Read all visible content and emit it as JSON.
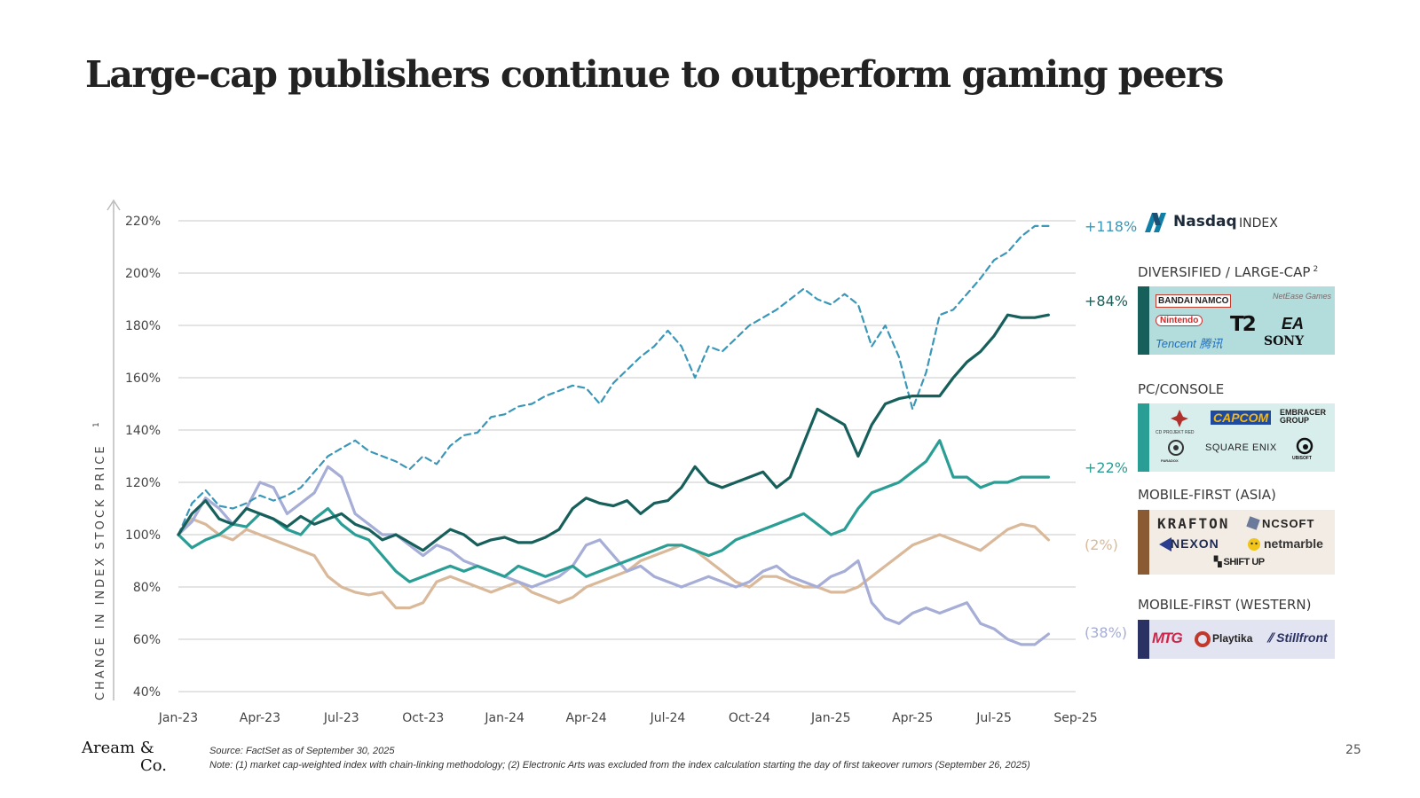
{
  "title": "Large-cap publishers continue to outperform gaming peers",
  "chart_data": {
    "type": "line",
    "ylabel": "CHANGE IN INDEX STOCK PRICE",
    "ylabel_note": "1",
    "ylim": [
      40,
      220
    ],
    "yticks": [
      40,
      60,
      80,
      100,
      120,
      140,
      160,
      180,
      200,
      220
    ],
    "ytick_labels": [
      "40%",
      "60%",
      "80%",
      "100%",
      "120%",
      "140%",
      "160%",
      "180%",
      "200%",
      "220%"
    ],
    "x_months": 33,
    "xtick_labels": [
      "Jan-23",
      "Apr-23",
      "Jul-23",
      "Oct-23",
      "Jan-24",
      "Apr-24",
      "Jul-24",
      "Oct-24",
      "Jan-25",
      "Apr-25",
      "Jul-25",
      "Sep-25"
    ],
    "xtick_months": [
      0,
      3,
      6,
      9,
      12,
      15,
      18,
      21,
      24,
      27,
      30,
      33
    ],
    "x_sample_step": 0.5,
    "series": [
      {
        "name": "Nasdaq Index",
        "color": "#3a97b7",
        "dashed": true,
        "end_label": "+118%",
        "values": [
          100,
          112,
          117,
          111,
          110,
          112,
          115,
          113,
          115,
          118,
          124,
          130,
          133,
          136,
          132,
          130,
          128,
          125,
          130,
          127,
          134,
          138,
          139,
          145,
          146,
          149,
          150,
          153,
          155,
          157,
          156,
          150,
          158,
          163,
          168,
          172,
          178,
          172,
          160,
          172,
          170,
          175,
          180,
          183,
          186,
          190,
          194,
          190,
          188,
          192,
          188,
          172,
          180,
          168,
          148,
          162,
          184,
          186,
          192,
          198,
          205,
          208,
          214,
          218,
          218
        ]
      },
      {
        "name": "Diversified / Large-Cap",
        "color": "#165f5b",
        "dashed": false,
        "end_label": "+84%",
        "values": [
          100,
          108,
          113,
          106,
          104,
          110,
          108,
          106,
          103,
          107,
          104,
          106,
          108,
          104,
          102,
          98,
          100,
          97,
          94,
          98,
          102,
          100,
          96,
          98,
          99,
          97,
          97,
          99,
          102,
          110,
          114,
          112,
          111,
          113,
          108,
          112,
          113,
          118,
          126,
          120,
          118,
          120,
          122,
          124,
          118,
          122,
          135,
          148,
          145,
          142,
          130,
          142,
          150,
          152,
          153,
          153,
          153,
          160,
          166,
          170,
          176,
          184,
          183,
          183,
          184
        ]
      },
      {
        "name": "PC/Console",
        "color": "#2a9e95",
        "dashed": false,
        "end_label": "+22%",
        "values": [
          100,
          95,
          98,
          100,
          104,
          103,
          108,
          106,
          102,
          100,
          106,
          110,
          104,
          100,
          98,
          92,
          86,
          82,
          84,
          86,
          88,
          86,
          88,
          86,
          84,
          88,
          86,
          84,
          86,
          88,
          84,
          86,
          88,
          90,
          92,
          94,
          96,
          96,
          94,
          92,
          94,
          98,
          100,
          102,
          104,
          106,
          108,
          104,
          100,
          102,
          110,
          116,
          118,
          120,
          124,
          128,
          136,
          122,
          122,
          118,
          120,
          120,
          122,
          122,
          122
        ]
      },
      {
        "name": "Mobile-First (Asia)",
        "color": "#d9b99a",
        "dashed": false,
        "end_label": "(2%)",
        "values": [
          100,
          106,
          104,
          100,
          98,
          102,
          100,
          98,
          96,
          94,
          92,
          84,
          80,
          78,
          77,
          78,
          72,
          72,
          74,
          82,
          84,
          82,
          80,
          78,
          80,
          82,
          78,
          76,
          74,
          76,
          80,
          82,
          84,
          86,
          90,
          92,
          94,
          96,
          94,
          90,
          86,
          82,
          80,
          84,
          84,
          82,
          80,
          80,
          78,
          78,
          80,
          84,
          88,
          92,
          96,
          98,
          100,
          98,
          96,
          94,
          98,
          102,
          104,
          103,
          98
        ]
      },
      {
        "name": "Mobile-First (Western)",
        "color": "#a6add6",
        "dashed": false,
        "end_label": "(38%)",
        "values": [
          100,
          105,
          114,
          110,
          104,
          110,
          120,
          118,
          108,
          112,
          116,
          126,
          122,
          108,
          104,
          100,
          100,
          96,
          92,
          96,
          94,
          90,
          88,
          86,
          84,
          82,
          80,
          82,
          84,
          88,
          96,
          98,
          92,
          86,
          88,
          84,
          82,
          80,
          82,
          84,
          82,
          80,
          82,
          86,
          88,
          84,
          82,
          80,
          84,
          86,
          90,
          74,
          68,
          66,
          70,
          72,
          70,
          72,
          74,
          66,
          64,
          60,
          58,
          58,
          62
        ]
      }
    ]
  },
  "legend": {
    "nasdaq_label": "+118%",
    "nasdaq_word": "Nasdaq",
    "nasdaq_index": "INDEX",
    "categories": [
      {
        "label": "DIVERSIFIED / LARGE-CAP",
        "note": "2",
        "bar_color": "#165f5b",
        "bg": "#b3dcdc",
        "logos": [
          "BANDAI NAMCO",
          "NetEase Games",
          "Nintendo",
          "T2",
          "EA",
          "Tencent 腾讯",
          "SONY"
        ]
      },
      {
        "label": "PC/CONSOLE",
        "note": "",
        "bar_color": "#2a9e95",
        "bg": "#d8eeec",
        "logos": [
          "CD PROJEKT RED",
          "CAPCOM",
          "EMBRACER GROUP",
          "SQUARE ENIX",
          "UBISOFT",
          "PARADOX"
        ]
      },
      {
        "label": "MOBILE-FIRST (ASIA)",
        "note": "",
        "bar_color": "#8a5a32",
        "bg": "#f3ece4",
        "logos": [
          "KRAFTON",
          "NCSOFT",
          "NEXON",
          "netmarble",
          "SHIFT UP"
        ]
      },
      {
        "label": "MOBILE-FIRST (WESTERN)",
        "note": "",
        "bar_color": "#2a3163",
        "bg": "#e3e4f1",
        "logos": [
          "MTG",
          "Playtika",
          "Stillfront"
        ]
      }
    ]
  },
  "footer": {
    "logo_line1": "Aream &",
    "logo_line2": "Co.",
    "source": "Source: FactSet as of September 30, 2025",
    "note": "Note: (1) market cap-weighted index with chain-linking methodology; (2) Electronic Arts was excluded from the index calculation starting the day of first takeover rumors (September 26, 2025)",
    "page": "25"
  }
}
